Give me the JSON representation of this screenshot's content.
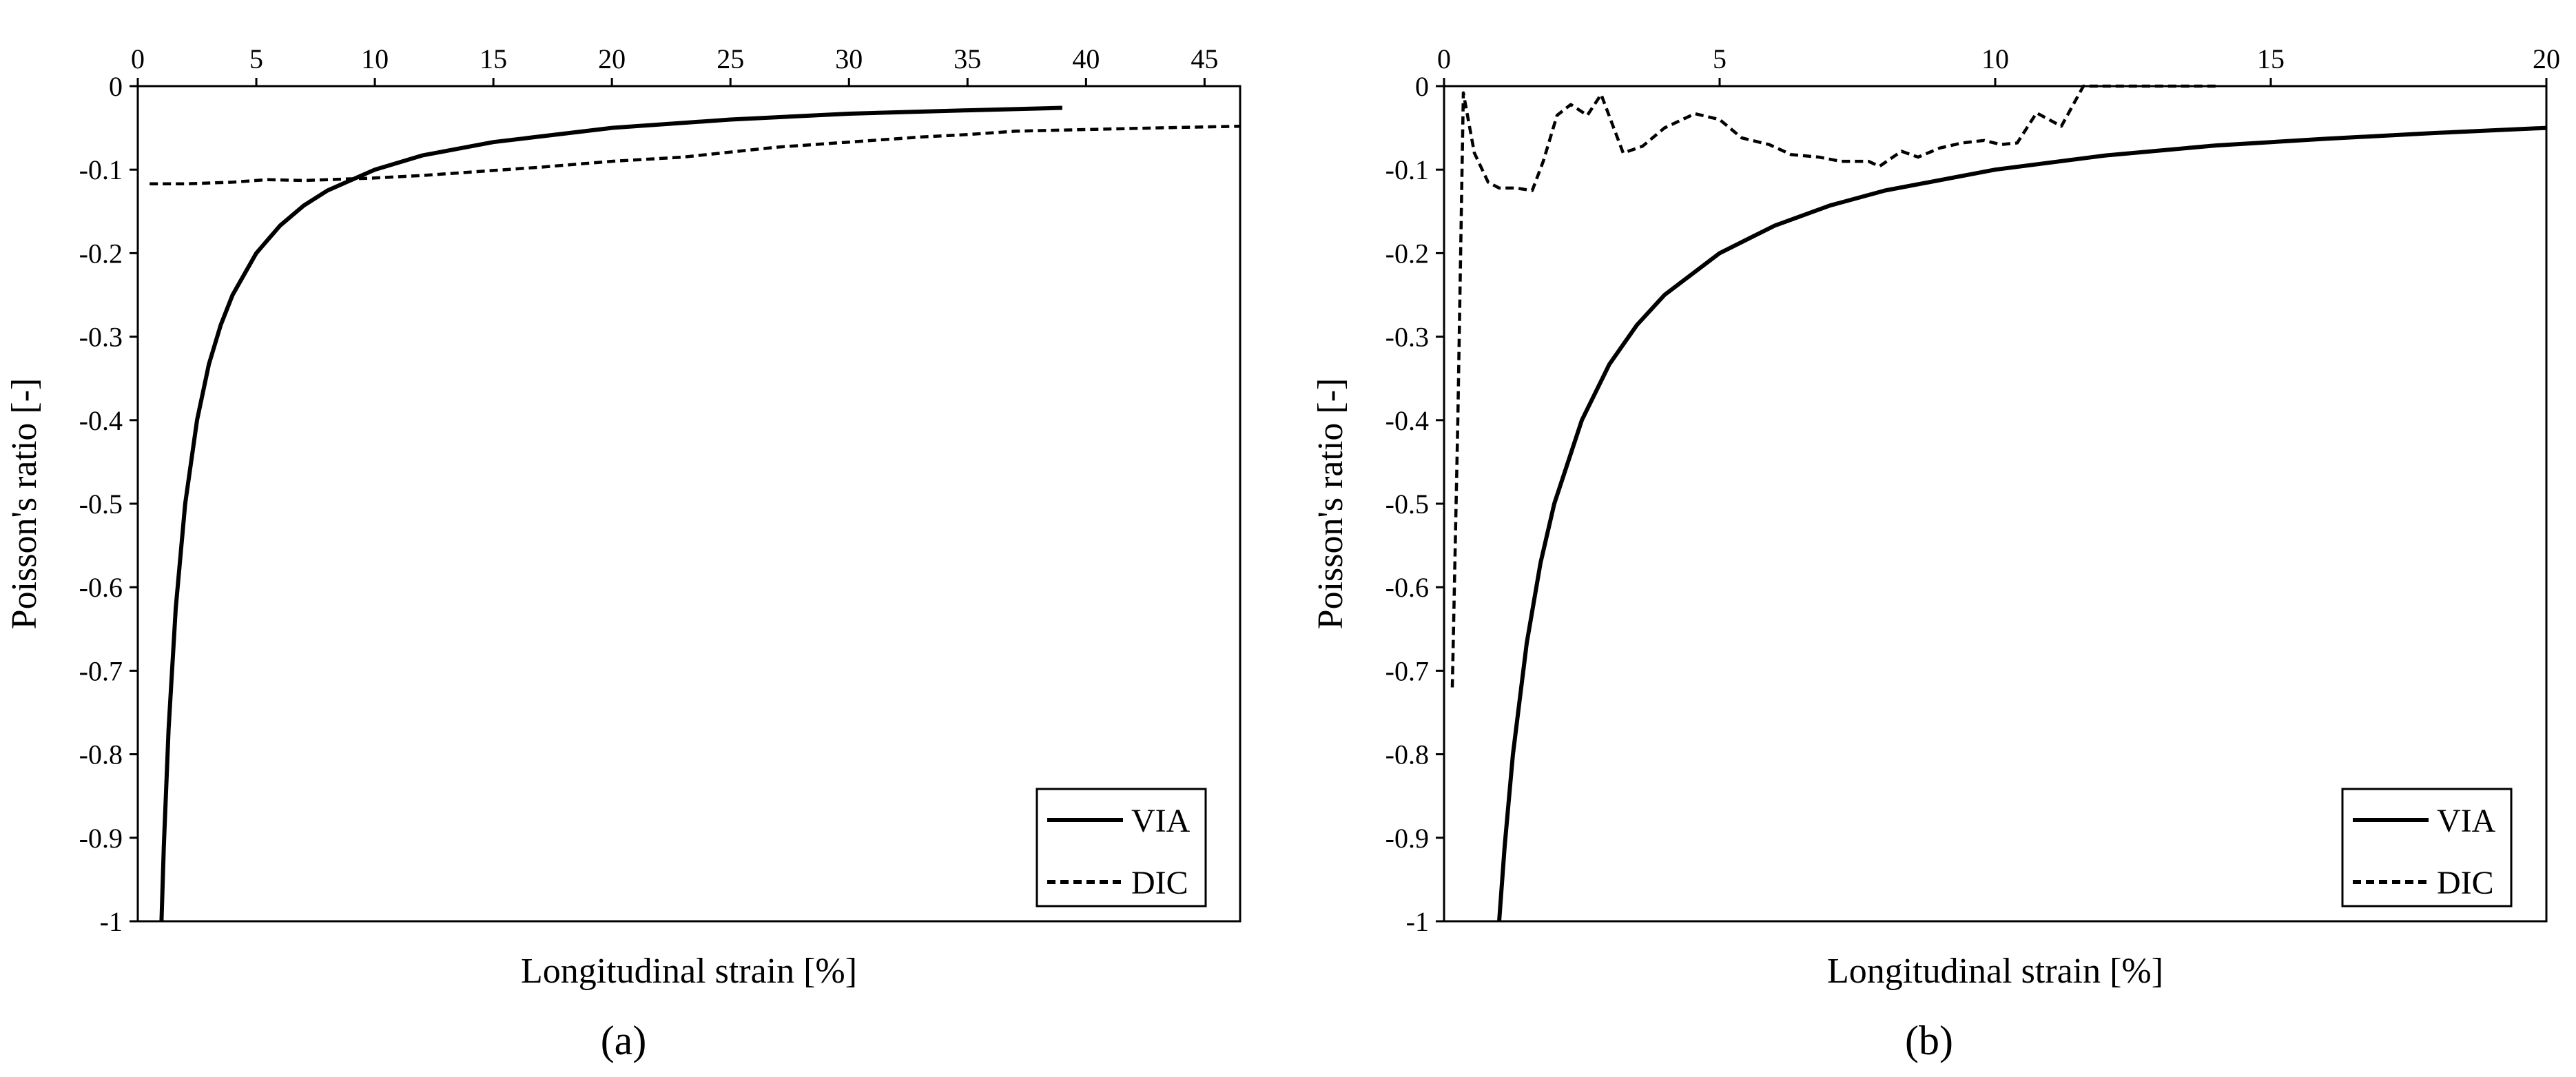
{
  "chart_data": [
    {
      "type": "line",
      "panel_label": "(a)",
      "xlabel": "Longitudinal strain [%]",
      "ylabel": "Poisson's ratio [-]",
      "xlim": [
        0,
        46.5
      ],
      "ylim": [
        -1,
        0
      ],
      "x_ticks": [
        0,
        5,
        10,
        15,
        20,
        25,
        30,
        35,
        40,
        45
      ],
      "y_ticks": [
        0,
        -0.1,
        -0.2,
        -0.3,
        -0.4,
        -0.5,
        -0.6,
        -0.7,
        -0.8,
        -0.9,
        -1
      ],
      "x_axis_position": "top",
      "grid": false,
      "legend_position": "bottom-right",
      "series": [
        {
          "name": "VIA",
          "style": "solid",
          "x": [
            1.0,
            1.1,
            1.3,
            1.6,
            2.0,
            2.5,
            3.0,
            3.5,
            4.0,
            5.0,
            6.0,
            7.0,
            8.0,
            10.0,
            12.0,
            15.0,
            20.0,
            25.0,
            30.0,
            35.0,
            39.0
          ],
          "y": [
            -1.0,
            -0.91,
            -0.77,
            -0.625,
            -0.5,
            -0.4,
            -0.333,
            -0.286,
            -0.25,
            -0.2,
            -0.167,
            -0.143,
            -0.125,
            -0.1,
            -0.083,
            -0.067,
            -0.05,
            -0.04,
            -0.033,
            -0.029,
            -0.026
          ]
        },
        {
          "name": "DIC",
          "style": "dashed",
          "x": [
            0.5,
            2,
            4,
            5.5,
            7,
            10,
            12,
            15,
            17,
            20,
            23,
            25,
            27,
            30,
            33,
            35,
            37,
            40,
            43,
            46.5
          ],
          "y": [
            -0.117,
            -0.117,
            -0.115,
            -0.112,
            -0.113,
            -0.11,
            -0.107,
            -0.101,
            -0.097,
            -0.09,
            -0.085,
            -0.079,
            -0.073,
            -0.067,
            -0.061,
            -0.058,
            -0.054,
            -0.052,
            -0.05,
            -0.048
          ]
        }
      ]
    },
    {
      "type": "line",
      "panel_label": "(b)",
      "xlabel": "Longitudinal strain [%]",
      "ylabel": "Poisson's ratio [-]",
      "xlim": [
        0,
        20
      ],
      "ylim": [
        -1,
        0
      ],
      "x_ticks": [
        0,
        5,
        10,
        15,
        20
      ],
      "y_ticks": [
        0,
        -0.1,
        -0.2,
        -0.3,
        -0.4,
        -0.5,
        -0.6,
        -0.7,
        -0.8,
        -0.9,
        -1
      ],
      "x_axis_position": "top",
      "grid": false,
      "legend_position": "bottom-right",
      "series": [
        {
          "name": "VIA",
          "style": "solid",
          "x": [
            1.0,
            1.1,
            1.25,
            1.5,
            1.75,
            2.0,
            2.5,
            3.0,
            3.5,
            4.0,
            5.0,
            6.0,
            7.0,
            8.0,
            10.0,
            12.0,
            14.0,
            16.0,
            18.0,
            20.0
          ],
          "y": [
            -1.0,
            -0.91,
            -0.8,
            -0.667,
            -0.571,
            -0.5,
            -0.4,
            -0.333,
            -0.286,
            -0.25,
            -0.2,
            -0.167,
            -0.143,
            -0.125,
            -0.1,
            -0.083,
            -0.071,
            -0.063,
            -0.056,
            -0.05
          ]
        },
        {
          "name": "DIC",
          "style": "dashed",
          "x": [
            0.15,
            0.25,
            0.35,
            0.55,
            0.8,
            1.0,
            1.3,
            1.6,
            1.8,
            2.05,
            2.3,
            2.6,
            2.85,
            3.25,
            3.6,
            4.0,
            4.55,
            5.0,
            5.4,
            5.9,
            6.3,
            6.8,
            7.2,
            7.7,
            7.9,
            8.3,
            8.6,
            9.0,
            9.4,
            9.8,
            10.1,
            10.4,
            10.75,
            11.2,
            11.6,
            12.0,
            13.0,
            14.0
          ],
          "y": [
            -0.72,
            -0.4,
            -0.008,
            -0.08,
            -0.115,
            -0.122,
            -0.122,
            -0.125,
            -0.09,
            -0.035,
            -0.022,
            -0.035,
            -0.01,
            -0.08,
            -0.072,
            -0.05,
            -0.033,
            -0.04,
            -0.062,
            -0.07,
            -0.082,
            -0.085,
            -0.09,
            -0.09,
            -0.096,
            -0.078,
            -0.085,
            -0.074,
            -0.068,
            -0.065,
            -0.07,
            -0.068,
            -0.032,
            -0.048,
            0.0,
            0.0,
            0.0,
            0.0
          ]
        }
      ]
    }
  ]
}
